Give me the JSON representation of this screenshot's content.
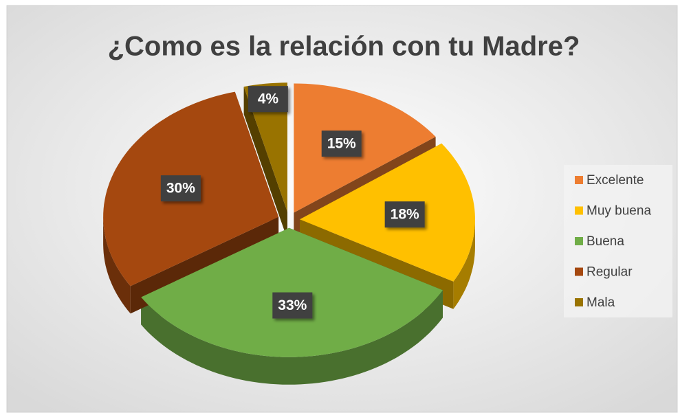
{
  "chart_data": {
    "type": "pie",
    "title": "¿Como es la relación con tu Madre?",
    "categories": [
      "Excelente",
      "Muy buena",
      "Buena",
      "Regular",
      "Mala"
    ],
    "values": [
      15,
      18,
      33,
      30,
      4
    ],
    "value_labels": [
      "15%",
      "18%",
      "33%",
      "30%",
      "4%"
    ],
    "colors": [
      "#ed7d31",
      "#ffc000",
      "#70ad47",
      "#a5480f",
      "#997300"
    ],
    "legend": "right"
  }
}
